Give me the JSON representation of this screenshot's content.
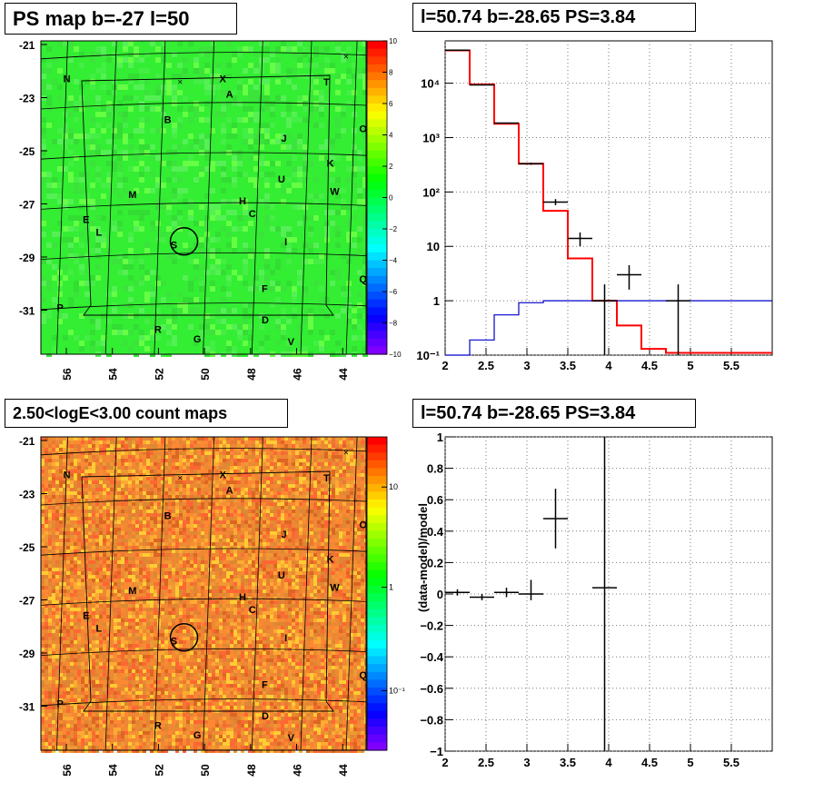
{
  "panels": {
    "top_left": {
      "title": "PS map b=-27 l=50"
    },
    "top_right": {
      "title": "l=50.74 b=-28.65 PS=3.84"
    },
    "bottom_left": {
      "title": "2.50<logE<3.00 count maps"
    },
    "bottom_right": {
      "title": "l=50.74 b=-28.65 PS=3.84"
    }
  },
  "colors": {
    "ps_map_bg": "#33ee33",
    "count_map_bg": "#ee8833",
    "model_red": "#ff0000",
    "model_blue": "#0000cc",
    "data_black": "#000000",
    "grid": "#555555"
  },
  "maps": {
    "y_ticks": [
      "-21",
      "-23",
      "-25",
      "-27",
      "-29",
      "-31"
    ],
    "x_ticks": [
      "56",
      "54",
      "52",
      "50",
      "48",
      "46",
      "44"
    ],
    "source_labels": [
      "N",
      "X",
      "T",
      "A",
      "B",
      "O",
      "J",
      "K",
      "U",
      "W",
      "M",
      "H",
      "C",
      "E",
      "L",
      "I",
      "S",
      "Q",
      "F",
      "P",
      "D",
      "R",
      "G",
      "V"
    ],
    "ps_colorbar_ticks": [
      "10",
      "8",
      "6",
      "4",
      "2",
      "0",
      "−2",
      "−4",
      "−6",
      "−8",
      "−10"
    ],
    "count_colorbar_ticks": [
      "10",
      "1",
      "10⁻¹"
    ]
  },
  "chart_data": [
    {
      "type": "line",
      "title": "l=50.74 b=-28.65 PS=3.84",
      "xlabel": "",
      "ylabel": "",
      "xlim": [
        2,
        6
      ],
      "ylim": [
        0.1,
        60000
      ],
      "y_scale": "log",
      "grid": true,
      "x_ticks": [
        "2",
        "2.5",
        "3",
        "3.5",
        "4",
        "4.5",
        "5",
        "5.5"
      ],
      "y_ticks": [
        "10⁻¹",
        "1",
        "10",
        "10²",
        "10³",
        "10⁴"
      ],
      "series": [
        {
          "style": "step",
          "color": "#ff0000",
          "bin_edges": [
            2.0,
            2.3,
            2.6,
            2.9,
            3.2,
            3.5,
            3.8,
            4.1,
            4.4,
            4.7,
            5.0,
            6.0
          ],
          "values": [
            40000,
            9500,
            1800,
            330,
            45,
            6,
            1.0,
            0.35,
            0.13,
            0.11,
            0.11
          ]
        },
        {
          "style": "step",
          "color": "#0000cc",
          "bin_edges": [
            2.0,
            2.3,
            2.6,
            2.9,
            3.2,
            3.5,
            3.8,
            4.1,
            4.4,
            4.7,
            5.0,
            6.0
          ],
          "values": [
            0.05,
            0.19,
            0.55,
            0.92,
            1.0,
            1.0,
            1.0,
            1.0,
            1.0,
            1.0,
            1.0
          ]
        },
        {
          "style": "errorbar",
          "color": "#000000",
          "points": [
            {
              "x": 2.15,
              "y": 40500,
              "xerr": 0.15,
              "ylo": 40300,
              "yhi": 40700
            },
            {
              "x": 2.45,
              "y": 9300,
              "xerr": 0.15,
              "ylo": 9200,
              "yhi": 9400
            },
            {
              "x": 2.75,
              "y": 1850,
              "xerr": 0.15,
              "ylo": 1810,
              "yhi": 1890
            },
            {
              "x": 3.05,
              "y": 330,
              "xerr": 0.15,
              "ylo": 315,
              "yhi": 345
            },
            {
              "x": 3.35,
              "y": 65,
              "xerr": 0.15,
              "ylo": 57,
              "yhi": 74
            },
            {
              "x": 3.65,
              "y": 14,
              "xerr": 0.15,
              "ylo": 10,
              "yhi": 18
            },
            {
              "x": 3.95,
              "y": 1.0,
              "xerr": 0.15,
              "ylo": 0.1,
              "yhi": 2.0
            },
            {
              "x": 4.25,
              "y": 3.0,
              "xerr": 0.15,
              "ylo": 1.6,
              "yhi": 4.5
            },
            {
              "x": 4.85,
              "y": 1.0,
              "xerr": 0.15,
              "ylo": 0.1,
              "yhi": 2.0
            }
          ]
        }
      ]
    },
    {
      "type": "scatter",
      "title": "l=50.74 b=-28.65 PS=3.84",
      "xlabel": "",
      "ylabel": "(data-model)/model",
      "xlim": [
        2,
        6
      ],
      "ylim": [
        -1,
        1
      ],
      "grid": true,
      "x_ticks": [
        "2",
        "2.5",
        "3",
        "3.5",
        "4",
        "4.5",
        "5",
        "5.5"
      ],
      "y_ticks": [
        "−1",
        "−0.8",
        "−0.6",
        "−0.4",
        "−0.2",
        "0",
        "0.2",
        "0.4",
        "0.6",
        "0.8",
        "1"
      ],
      "points": [
        {
          "x": 2.15,
          "y": 0.01,
          "xerr": 0.15,
          "ylo": -0.01,
          "yhi": 0.03
        },
        {
          "x": 2.45,
          "y": -0.02,
          "xerr": 0.15,
          "ylo": -0.04,
          "yhi": 0.0
        },
        {
          "x": 2.75,
          "y": 0.01,
          "xerr": 0.15,
          "ylo": -0.02,
          "yhi": 0.04
        },
        {
          "x": 3.05,
          "y": 0.0,
          "xerr": 0.15,
          "ylo": -0.04,
          "yhi": 0.09
        },
        {
          "x": 3.35,
          "y": 0.48,
          "xerr": 0.15,
          "ylo": 0.29,
          "yhi": 0.67
        },
        {
          "x": 3.95,
          "y": 0.04,
          "xerr": 0.15,
          "ylo": -1.0,
          "yhi": 1.0
        }
      ]
    }
  ]
}
